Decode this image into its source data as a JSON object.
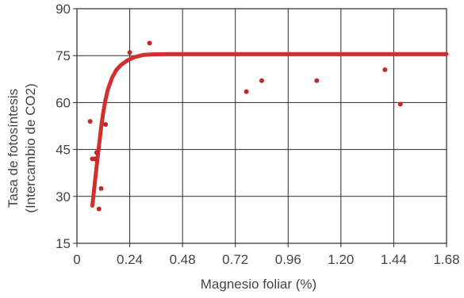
{
  "chart_data": {
    "type": "scatter",
    "xlabel": "Magnesio foliar (%)",
    "ylabel_lines": [
      "Tasa de fotosíntesis",
      "(Intercambio de CO2)"
    ],
    "xlim": [
      0,
      1.68
    ],
    "ylim": [
      15,
      90
    ],
    "xticks": [
      0,
      0.24,
      0.48,
      0.72,
      0.96,
      1.2,
      1.44,
      1.68
    ],
    "xtick_labels": [
      "0",
      "0.24",
      "0.48",
      "0.72",
      "0.96",
      "1.20",
      "1.44",
      "1.68"
    ],
    "yticks": [
      15,
      30,
      45,
      60,
      75,
      90
    ],
    "ytick_labels": [
      "15",
      "30",
      "45",
      "60",
      "75",
      "90"
    ],
    "grid": true,
    "series": [
      {
        "type": "scatter",
        "color": "#c62828",
        "x": [
          0.06,
          0.07,
          0.08,
          0.09,
          0.09,
          0.1,
          0.11,
          0.13,
          0.24,
          0.33,
          0.77,
          0.84,
          1.09,
          1.4,
          1.47
        ],
        "y": [
          54,
          42,
          42,
          44,
          44,
          26,
          32.5,
          53,
          76,
          79,
          63.5,
          67,
          67,
          70.5,
          59.5
        ]
      },
      {
        "type": "line",
        "color": "#d32f2f",
        "x": [
          0.07,
          0.08,
          0.09,
          0.1,
          0.11,
          0.12,
          0.13,
          0.14,
          0.16,
          0.18,
          0.2,
          0.23,
          0.26,
          0.3,
          0.34,
          0.4,
          0.6,
          1.0,
          1.4,
          1.68
        ],
        "y": [
          27,
          33.5,
          40,
          46,
          52,
          57,
          61,
          64,
          68,
          70.5,
          72,
          73.5,
          74.5,
          75.2,
          75.4,
          75.5,
          75.5,
          75.5,
          75.5,
          75.5
        ]
      }
    ]
  }
}
